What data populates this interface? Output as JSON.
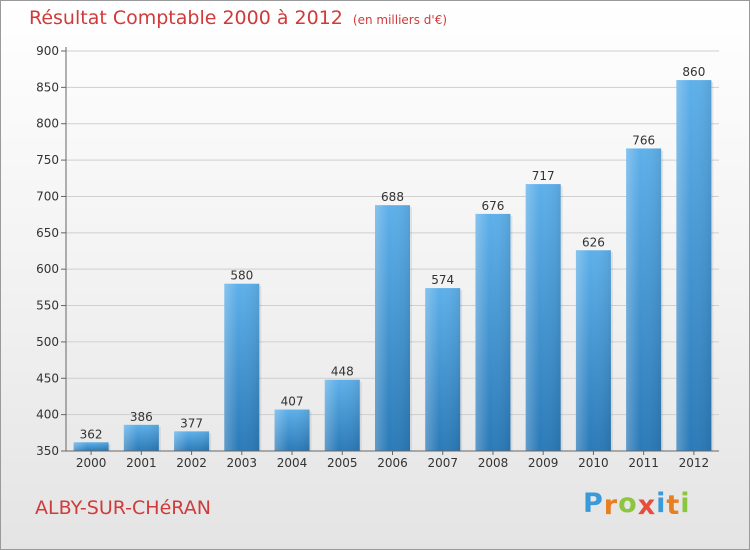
{
  "chart_data": {
    "type": "bar",
    "title": "Résultat Comptable 2000 à 2012",
    "subtitle": "(en milliers d'€)",
    "categories": [
      "2000",
      "2001",
      "2002",
      "2003",
      "2004",
      "2005",
      "2006",
      "2007",
      "2008",
      "2009",
      "2010",
      "2011",
      "2012"
    ],
    "values": [
      362,
      386,
      377,
      580,
      407,
      448,
      688,
      574,
      676,
      717,
      626,
      766,
      860
    ],
    "ylim": [
      350,
      900
    ],
    "yticks": [
      350,
      400,
      450,
      500,
      550,
      600,
      650,
      700,
      750,
      800,
      850,
      900
    ],
    "grid": true,
    "xlabel": "",
    "ylabel": ""
  },
  "location": "ALBY-SUR-CHéRAN",
  "brand": {
    "letters": [
      "P",
      "r",
      "o",
      "x",
      "i",
      "t",
      "i"
    ],
    "colors": [
      "#3a9ad9",
      "#e67e22",
      "#8cc63f",
      "#e74c3c",
      "#3a9ad9",
      "#e67e22",
      "#8cc63f"
    ]
  },
  "colors": {
    "bar_top": "#5eb0ea",
    "bar_bottom": "#2b7ab8",
    "title": "#d03a3a"
  }
}
